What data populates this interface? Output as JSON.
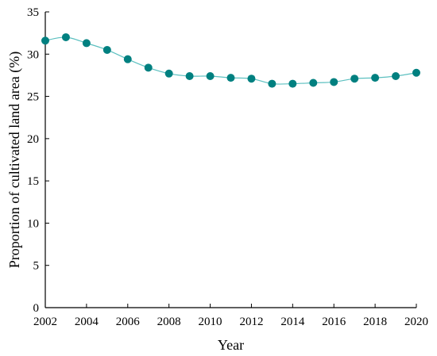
{
  "chart_data": {
    "type": "line",
    "title": "",
    "xlabel": "Year",
    "ylabel": "Proportion of cultivated land area (%)",
    "xlim": [
      2002,
      2020
    ],
    "ylim": [
      0,
      35
    ],
    "xticks": [
      2002,
      2004,
      2006,
      2008,
      2010,
      2012,
      2014,
      2016,
      2018,
      2020
    ],
    "yticks": [
      0,
      5,
      10,
      15,
      20,
      25,
      30,
      35
    ],
    "grid": false,
    "legend": "none",
    "series": [
      {
        "x": [
          2002,
          2003,
          2004,
          2005,
          2006,
          2007,
          2008,
          2009,
          2010,
          2011,
          2012,
          2013,
          2014,
          2015,
          2016,
          2017,
          2018,
          2019,
          2020
        ],
        "values": [
          31.6,
          32.0,
          31.3,
          30.5,
          29.4,
          28.4,
          27.7,
          27.4,
          27.4,
          27.2,
          27.1,
          26.5,
          26.5,
          26.6,
          26.7,
          27.1,
          27.2,
          27.4,
          27.8
        ],
        "color": "#5cc0c0",
        "marker_color": "#008080"
      }
    ]
  }
}
